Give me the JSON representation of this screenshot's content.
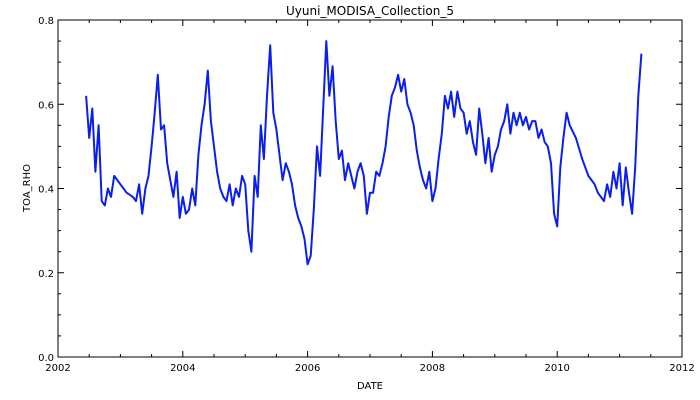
{
  "chart_data": {
    "type": "line",
    "title": "Uyuni_MODISA_Collection_5",
    "xlabel": "DATE",
    "ylabel": "TOA_RHO",
    "xlim": [
      2002,
      2012
    ],
    "ylim": [
      0.0,
      0.8
    ],
    "x_ticks": [
      "2002",
      "2004",
      "2006",
      "2008",
      "2010",
      "2012"
    ],
    "y_ticks": [
      "0.0",
      "0.2",
      "0.4",
      "0.6",
      "0.8"
    ],
    "grid": false,
    "series": [
      {
        "color": "#0a1ef0",
        "x": [
          2002.45,
          2002.5,
          2002.55,
          2002.6,
          2002.65,
          2002.7,
          2002.75,
          2002.8,
          2002.85,
          2002.9,
          2003.0,
          2003.1,
          2003.2,
          2003.25,
          2003.3,
          2003.35,
          2003.4,
          2003.45,
          2003.5,
          2003.55,
          2003.6,
          2003.65,
          2003.7,
          2003.75,
          2003.8,
          2003.85,
          2003.9,
          2003.95,
          2004.0,
          2004.05,
          2004.1,
          2004.15,
          2004.2,
          2004.25,
          2004.3,
          2004.35,
          2004.4,
          2004.45,
          2004.5,
          2004.55,
          2004.6,
          2004.65,
          2004.7,
          2004.75,
          2004.8,
          2004.85,
          2004.9,
          2004.95,
          2005.0,
          2005.05,
          2005.1,
          2005.15,
          2005.2,
          2005.25,
          2005.3,
          2005.35,
          2005.4,
          2005.45,
          2005.5,
          2005.55,
          2005.6,
          2005.65,
          2005.7,
          2005.75,
          2005.8,
          2005.85,
          2005.9,
          2005.95,
          2006.0,
          2006.05,
          2006.1,
          2006.15,
          2006.2,
          2006.25,
          2006.3,
          2006.35,
          2006.4,
          2006.45,
          2006.5,
          2006.55,
          2006.6,
          2006.65,
          2006.7,
          2006.75,
          2006.8,
          2006.85,
          2006.9,
          2006.95,
          2007.0,
          2007.05,
          2007.1,
          2007.15,
          2007.2,
          2007.25,
          2007.3,
          2007.35,
          2007.4,
          2007.45,
          2007.5,
          2007.55,
          2007.6,
          2007.65,
          2007.7,
          2007.75,
          2007.8,
          2007.85,
          2007.9,
          2007.95,
          2008.0,
          2008.05,
          2008.1,
          2008.15,
          2008.2,
          2008.25,
          2008.3,
          2008.35,
          2008.4,
          2008.45,
          2008.5,
          2008.55,
          2008.6,
          2008.65,
          2008.7,
          2008.75,
          2008.8,
          2008.85,
          2008.9,
          2008.95,
          2009.0,
          2009.05,
          2009.1,
          2009.15,
          2009.2,
          2009.25,
          2009.3,
          2009.35,
          2009.4,
          2009.45,
          2009.5,
          2009.55,
          2009.6,
          2009.65,
          2009.7,
          2009.75,
          2009.8,
          2009.85,
          2009.9,
          2009.95,
          2010.0,
          2010.05,
          2010.1,
          2010.15,
          2010.2,
          2010.3,
          2010.4,
          2010.5,
          2010.6,
          2010.65,
          2010.7,
          2010.75,
          2010.8,
          2010.85,
          2010.9,
          2010.95,
          2011.0,
          2011.05,
          2011.1,
          2011.15,
          2011.2,
          2011.25,
          2011.3,
          2011.35
        ],
        "y": [
          0.62,
          0.52,
          0.59,
          0.44,
          0.55,
          0.37,
          0.36,
          0.4,
          0.38,
          0.43,
          0.41,
          0.39,
          0.38,
          0.37,
          0.41,
          0.34,
          0.4,
          0.43,
          0.5,
          0.58,
          0.67,
          0.54,
          0.55,
          0.46,
          0.42,
          0.38,
          0.44,
          0.33,
          0.38,
          0.34,
          0.35,
          0.4,
          0.36,
          0.48,
          0.55,
          0.6,
          0.68,
          0.56,
          0.5,
          0.44,
          0.4,
          0.38,
          0.37,
          0.41,
          0.36,
          0.4,
          0.38,
          0.43,
          0.41,
          0.3,
          0.25,
          0.43,
          0.38,
          0.55,
          0.47,
          0.62,
          0.74,
          0.58,
          0.54,
          0.48,
          0.42,
          0.46,
          0.44,
          0.41,
          0.36,
          0.33,
          0.31,
          0.28,
          0.22,
          0.24,
          0.35,
          0.5,
          0.43,
          0.59,
          0.75,
          0.62,
          0.69,
          0.56,
          0.47,
          0.49,
          0.42,
          0.46,
          0.43,
          0.4,
          0.44,
          0.46,
          0.43,
          0.34,
          0.39,
          0.39,
          0.44,
          0.43,
          0.46,
          0.5,
          0.57,
          0.62,
          0.64,
          0.67,
          0.63,
          0.66,
          0.6,
          0.58,
          0.55,
          0.49,
          0.45,
          0.42,
          0.4,
          0.44,
          0.37,
          0.4,
          0.47,
          0.53,
          0.62,
          0.59,
          0.63,
          0.57,
          0.63,
          0.59,
          0.58,
          0.53,
          0.56,
          0.51,
          0.48,
          0.59,
          0.53,
          0.46,
          0.52,
          0.44,
          0.48,
          0.5,
          0.54,
          0.56,
          0.6,
          0.53,
          0.58,
          0.55,
          0.58,
          0.55,
          0.57,
          0.54,
          0.56,
          0.56,
          0.52,
          0.54,
          0.51,
          0.5,
          0.46,
          0.34,
          0.31,
          0.45,
          0.52,
          0.58,
          0.55,
          0.52,
          0.47,
          0.43,
          0.41,
          0.39,
          0.38,
          0.37,
          0.41,
          0.38,
          0.44,
          0.4,
          0.46,
          0.36,
          0.45,
          0.39,
          0.34,
          0.45,
          0.62,
          0.72
        ]
      }
    ]
  }
}
